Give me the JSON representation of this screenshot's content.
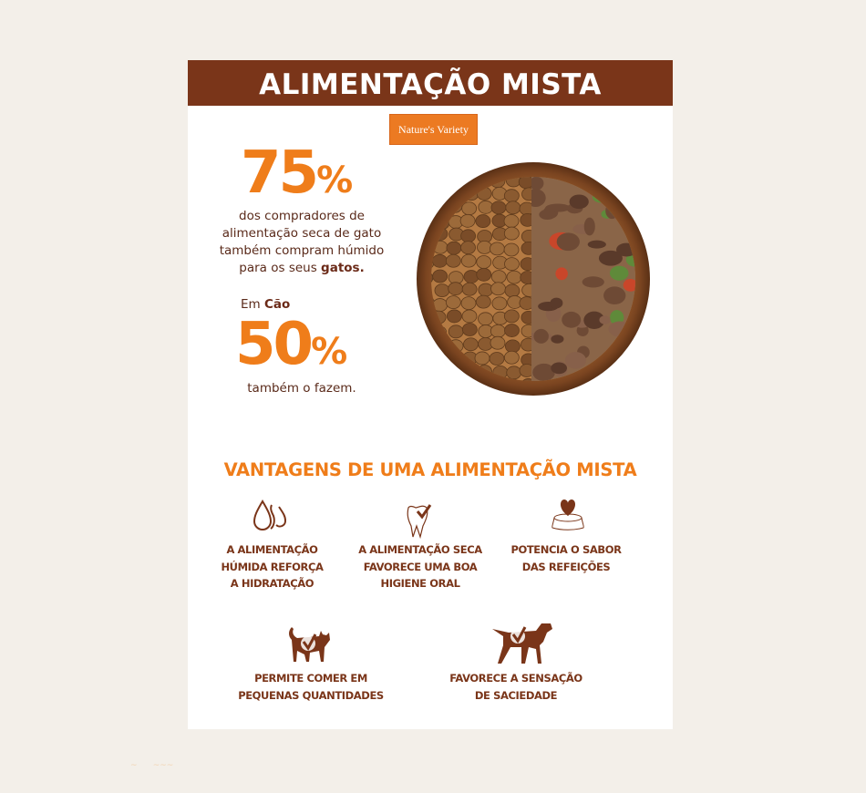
{
  "header": {
    "title": "ALIMENTAÇÃO MISTA"
  },
  "logo": {
    "text": "Nature's Variety"
  },
  "stat_cat": {
    "value": "75",
    "unit": "%",
    "line1": "dos compradores de",
    "line2": "alimentação seca de gato",
    "line3": "também compram húmido",
    "line4_pre": "para os seus ",
    "line4_bold": "gatos."
  },
  "stat_dog": {
    "pre": "Em ",
    "bold": "Cão",
    "value": "50",
    "unit": "%",
    "text": "também o fazem."
  },
  "advantages": {
    "title": "VANTAGENS DE UMA ALIMENTAÇÃO MISTA",
    "items": [
      {
        "icon": "water-drops-icon",
        "lines": [
          "A ALIMENTAÇÃO",
          "HÚMIDA REFORÇA",
          "A HIDRATAÇÃO"
        ]
      },
      {
        "icon": "tooth-check-icon",
        "lines": [
          "A ALIMENTAÇÃO SECA",
          "FAVORECE UMA BOA",
          "HIGIENE ORAL"
        ]
      },
      {
        "icon": "bowl-heart-icon",
        "lines": [
          "POTENCIA O SABOR",
          "DAS REFEIÇÕES"
        ]
      },
      {
        "icon": "cat-check-icon",
        "lines": [
          "PERMITE COMER EM",
          "PEQUENAS QUANTIDADES"
        ]
      },
      {
        "icon": "dog-check-icon",
        "lines": [
          "FAVORECE A SENSAÇÃO",
          "DE SACIEDADE"
        ]
      }
    ]
  },
  "colors": {
    "brown": "#7a3519",
    "orange": "#ef7d1a",
    "background": "#f3efe9"
  }
}
